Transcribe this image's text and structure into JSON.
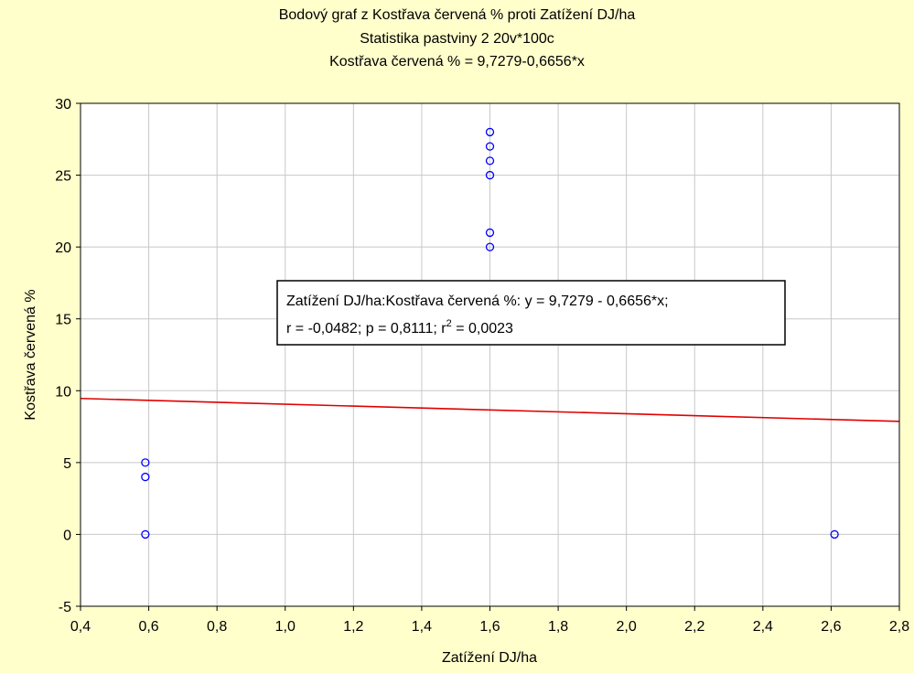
{
  "titles": {
    "line1": "Bodový graf z Kostřava červená % proti Zatížení DJ/ha",
    "line2": "Statistika pastviny 2 20v*100c",
    "line3": "Kostřava červená % = 9,7279-0,6656*x"
  },
  "stats_box": {
    "line1": "Zatížení DJ/ha:Kostřava červená %:   y = 9,7279 - 0,6656*x;",
    "line2_prefix": "r = -0,0482; p = 0,8111; r",
    "line2_sup": "2",
    "line2_suffix": " = 0,0023"
  },
  "colors": {
    "background": "#ffffcc",
    "plot_background": "#ffffff",
    "grid": "#c8c8c8",
    "points": "#0000ff",
    "fit_line": "#e00000"
  },
  "chart_data": {
    "type": "scatter",
    "title": "Bodový graf z Kostřava červená % proti Zatížení DJ/ha",
    "xlabel": "Zatížení DJ/ha",
    "ylabel": "Kostřava červená %",
    "xlim": [
      0.4,
      2.8
    ],
    "ylim": [
      -5,
      30
    ],
    "x_ticks": [
      0.4,
      0.6,
      0.8,
      1.0,
      1.2,
      1.4,
      1.6,
      1.8,
      2.0,
      2.2,
      2.4,
      2.6,
      2.8
    ],
    "x_tick_labels": [
      "0,4",
      "0,6",
      "0,8",
      "1,0",
      "1,2",
      "1,4",
      "1,6",
      "1,8",
      "2,0",
      "2,2",
      "2,4",
      "2,6",
      "2,8"
    ],
    "y_ticks": [
      -5,
      0,
      5,
      10,
      15,
      20,
      25,
      30
    ],
    "y_tick_labels": [
      "-5",
      "0",
      "5",
      "10",
      "15",
      "20",
      "25",
      "30"
    ],
    "grid": true,
    "points": [
      {
        "x": 0.59,
        "y": 5
      },
      {
        "x": 0.59,
        "y": 4
      },
      {
        "x": 0.59,
        "y": 0
      },
      {
        "x": 1.6,
        "y": 28
      },
      {
        "x": 1.6,
        "y": 27
      },
      {
        "x": 1.6,
        "y": 26
      },
      {
        "x": 1.6,
        "y": 25
      },
      {
        "x": 1.6,
        "y": 21
      },
      {
        "x": 1.6,
        "y": 20
      },
      {
        "x": 2.61,
        "y": 0
      }
    ],
    "regression": {
      "intercept": 9.7279,
      "slope": -0.6656
    }
  }
}
